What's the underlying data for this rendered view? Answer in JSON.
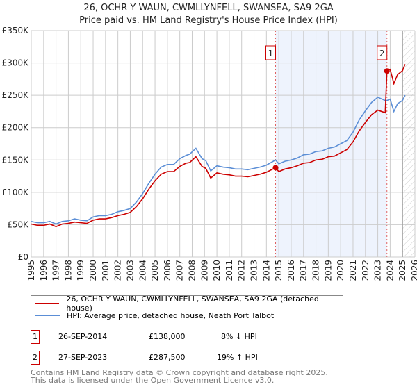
{
  "title": "26, OCHR Y WAUN, CWMLLYNFELL, SWANSEA, SA9 2GA",
  "subtitle": "Price paid vs. HM Land Registry's House Price Index (HPI)",
  "chart_data": {
    "type": "line",
    "title": "26, OCHR Y WAUN, CWMLLYNFELL, SWANSEA, SA9 2GA",
    "subtitle": "Price paid vs. HM Land Registry's House Price Index (HPI)",
    "xlim": [
      1995,
      2026
    ],
    "ylim": [
      0,
      350000
    ],
    "x_ticks": [
      "1995",
      "1996",
      "1997",
      "1998",
      "1999",
      "2000",
      "2001",
      "2002",
      "2003",
      "2004",
      "2005",
      "2006",
      "2007",
      "2008",
      "2009",
      "2010",
      "2011",
      "2012",
      "2013",
      "2014",
      "2015",
      "2016",
      "2017",
      "2018",
      "2019",
      "2020",
      "2021",
      "2022",
      "2023",
      "2024",
      "2025",
      "2026"
    ],
    "y_ticks": [
      {
        "v": 0,
        "label": "£0"
      },
      {
        "v": 50000,
        "label": "£50K"
      },
      {
        "v": 100000,
        "label": "£100K"
      },
      {
        "v": 150000,
        "label": "£150K"
      },
      {
        "v": 200000,
        "label": "£200K"
      },
      {
        "v": 250000,
        "label": "£250K"
      },
      {
        "v": 300000,
        "label": "£300K"
      },
      {
        "v": 350000,
        "label": "£350K"
      }
    ],
    "grid": true,
    "series": [
      {
        "name": "26, OCHR Y WAUN, CWMLLYNFELL, SWANSEA, SA9 2GA (detached house)",
        "color": "#cc0000",
        "x": [
          1995,
          1995.5,
          1996,
          1996.5,
          1997,
          1997.5,
          1998,
          1998.5,
          1999,
          1999.5,
          2000,
          2000.5,
          2001,
          2001.5,
          2002,
          2002.5,
          2003,
          2003.5,
          2004,
          2004.5,
          2005,
          2005.5,
          2006,
          2006.5,
          2007,
          2007.5,
          2007.8,
          2008.3,
          2008.8,
          2009.1,
          2009.5,
          2010,
          2010.5,
          2011,
          2011.5,
          2012,
          2012.5,
          2013,
          2013.5,
          2014,
          2014.74,
          2015,
          2015.5,
          2016,
          2016.5,
          2017,
          2017.5,
          2018,
          2018.5,
          2019,
          2019.5,
          2020,
          2020.5,
          2021,
          2021.5,
          2022,
          2022.5,
          2023,
          2023.6,
          2023.74,
          2024,
          2024.3,
          2024.6,
          2025,
          2025.2
        ],
        "y": [
          51000,
          49000,
          49000,
          51000,
          47000,
          51000,
          52000,
          54000,
          53000,
          52000,
          57000,
          59000,
          59000,
          61000,
          64000,
          66000,
          69000,
          78000,
          90000,
          105000,
          118000,
          128000,
          132000,
          132000,
          140000,
          145000,
          146000,
          155000,
          140000,
          137000,
          122000,
          130000,
          128000,
          127000,
          125000,
          125000,
          124000,
          126000,
          128000,
          131000,
          138000,
          132000,
          136000,
          138000,
          141000,
          145000,
          146000,
          150000,
          151000,
          155000,
          156000,
          161000,
          166000,
          178000,
          195000,
          208000,
          220000,
          227000,
          223000,
          287500,
          290000,
          268000,
          282000,
          288000,
          298000
        ]
      },
      {
        "name": "HPI: Average price, detached house, Neath Port Talbot",
        "color": "#5b8ed6",
        "x": [
          1995,
          1995.5,
          1996,
          1996.5,
          1997,
          1997.5,
          1998,
          1998.5,
          1999,
          1999.5,
          2000,
          2000.5,
          2001,
          2001.5,
          2002,
          2002.5,
          2003,
          2003.5,
          2004,
          2004.5,
          2005,
          2005.5,
          2006,
          2006.5,
          2007,
          2007.5,
          2007.8,
          2008.3,
          2008.8,
          2009.1,
          2009.5,
          2010,
          2010.5,
          2011,
          2011.5,
          2012,
          2012.5,
          2013,
          2013.5,
          2014,
          2014.74,
          2015,
          2015.5,
          2016,
          2016.5,
          2017,
          2017.5,
          2018,
          2018.5,
          2019,
          2019.5,
          2020,
          2020.5,
          2021,
          2021.5,
          2022,
          2022.5,
          2023,
          2023.6,
          2023.74,
          2024,
          2024.3,
          2024.6,
          2025,
          2025.2
        ],
        "y": [
          55000,
          53000,
          53000,
          55000,
          51000,
          55000,
          56000,
          59000,
          57000,
          56000,
          62000,
          64000,
          64000,
          66000,
          70000,
          72000,
          75000,
          85000,
          98000,
          114000,
          128000,
          139000,
          143000,
          143000,
          152000,
          157000,
          159000,
          168000,
          152000,
          149000,
          133000,
          141000,
          139000,
          138000,
          136000,
          136000,
          135000,
          137000,
          139000,
          142000,
          150000,
          144000,
          148000,
          150000,
          153000,
          158000,
          159000,
          163000,
          164000,
          168000,
          170000,
          175000,
          180000,
          193000,
          212000,
          226000,
          239000,
          247000,
          242000,
          242000,
          244000,
          225000,
          237000,
          242000,
          250000
        ]
      }
    ],
    "sales": [
      {
        "label": "1",
        "x": 2014.74,
        "y": 138000
      },
      {
        "label": "2",
        "x": 2023.74,
        "y": 287500
      }
    ],
    "forecast_from": 2025
  },
  "legend": {
    "property": "26, OCHR Y WAUN, CWMLLYNFELL, SWANSEA, SA9 2GA (detached house)",
    "hpi": "HPI: Average price, detached house, Neath Port Talbot"
  },
  "transactions": [
    {
      "num": "1",
      "date": "26-SEP-2014",
      "price": "£138,000",
      "hpi": "8% ↓ HPI"
    },
    {
      "num": "2",
      "date": "27-SEP-2023",
      "price": "£287,500",
      "hpi": "19% ↑ HPI"
    }
  ],
  "footer": {
    "line1": "Contains HM Land Registry data © Crown copyright and database right 2025.",
    "line2": "This data is licensed under the Open Government Licence v3.0."
  }
}
